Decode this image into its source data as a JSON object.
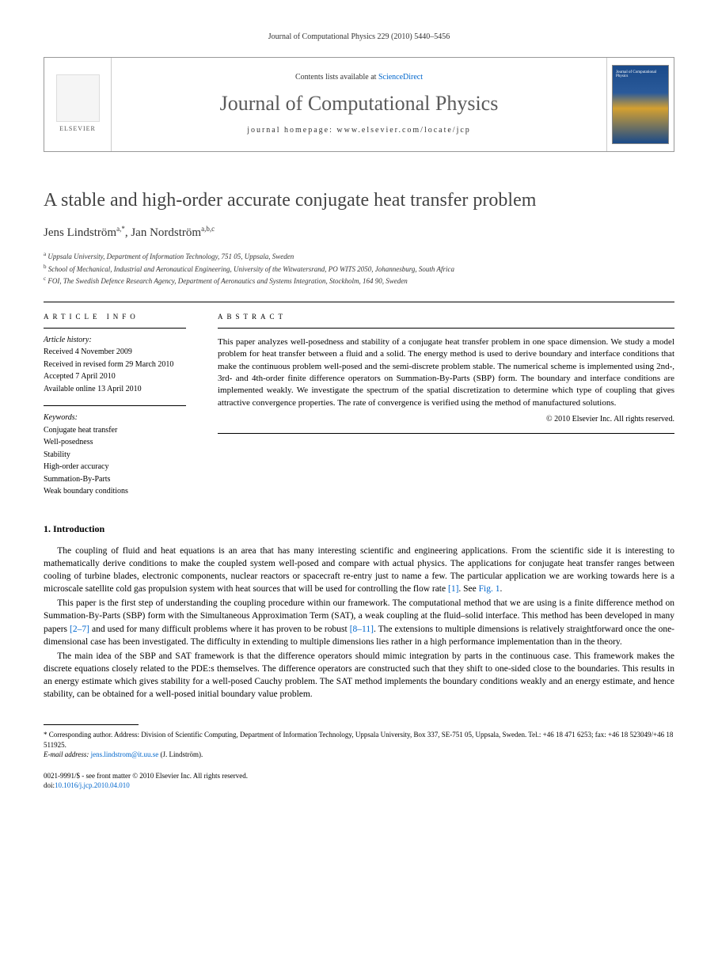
{
  "running_head": "Journal of Computational Physics 229 (2010) 5440–5456",
  "banner": {
    "elsevier_label": "ELSEVIER",
    "contents_prefix": "Contents lists available at ",
    "contents_link_text": "ScienceDirect",
    "journal_name": "Journal of Computational Physics",
    "homepage_label": "journal homepage: www.elsevier.com/locate/jcp",
    "cover_title": "Journal of\nComputational\nPhysics"
  },
  "article": {
    "title": "A stable and high-order accurate conjugate heat transfer problem",
    "authors_html_parts": [
      {
        "name": "Jens Lindström",
        "sup": "a,*"
      },
      {
        "name": "Jan Nordström",
        "sup": "a,b,c"
      }
    ],
    "affiliations": [
      {
        "marker": "a",
        "text": "Uppsala University, Department of Information Technology, 751 05, Uppsala, Sweden"
      },
      {
        "marker": "b",
        "text": "School of Mechanical, Industrial and Aeronautical Engineering, University of the Witwatersrand, PO WITS 2050, Johannesburg, South Africa"
      },
      {
        "marker": "c",
        "text": "FOI, The Swedish Defence Research Agency, Department of Aeronautics and Systems Integration, Stockholm, 164 90, Sweden"
      }
    ]
  },
  "info": {
    "heading": "ARTICLE INFO",
    "history_label": "Article history:",
    "history": [
      "Received 4 November 2009",
      "Received in revised form 29 March 2010",
      "Accepted 7 April 2010",
      "Available online 13 April 2010"
    ],
    "keywords_label": "Keywords:",
    "keywords": [
      "Conjugate heat transfer",
      "Well-posedness",
      "Stability",
      "High-order accuracy",
      "Summation-By-Parts",
      "Weak boundary conditions"
    ]
  },
  "abstract": {
    "heading": "ABSTRACT",
    "text": "This paper analyzes well-posedness and stability of a conjugate heat transfer problem in one space dimension. We study a model problem for heat transfer between a fluid and a solid. The energy method is used to derive boundary and interface conditions that make the continuous problem well-posed and the semi-discrete problem stable. The numerical scheme is implemented using 2nd-, 3rd- and 4th-order finite difference operators on Summation-By-Parts (SBP) form. The boundary and interface conditions are implemented weakly. We investigate the spectrum of the spatial discretization to determine which type of coupling that gives attractive convergence properties. The rate of convergence is verified using the method of manufactured solutions.",
    "copyright": "© 2010 Elsevier Inc. All rights reserved."
  },
  "section1": {
    "heading": "1. Introduction",
    "paragraphs": [
      "The coupling of fluid and heat equations is an area that has many interesting scientific and engineering applications. From the scientific side it is interesting to mathematically derive conditions to make the coupled system well-posed and compare with actual physics. The applications for conjugate heat transfer ranges between cooling of turbine blades, electronic components, nuclear reactors or spacecraft re-entry just to name a few. The particular application we are working towards here is a microscale satellite cold gas propulsion system with heat sources that will be used for controlling the flow rate [1]. See Fig. 1.",
      "This paper is the first step of understanding the coupling procedure within our framework. The computational method that we are using is a finite difference method on Summation-By-Parts (SBP) form with the Simultaneous Approximation Term (SAT), a weak coupling at the fluid–solid interface. This method has been developed in many papers [2–7] and used for many difficult problems where it has proven to be robust [8–11]. The extensions to multiple dimensions is relatively straightforward once the one-dimensional case has been investigated. The difficulty in extending to multiple dimensions lies rather in a high performance implementation than in the theory.",
      "The main idea of the SBP and SAT framework is that the difference operators should mimic integration by parts in the continuous case. This framework makes the discrete equations closely related to the PDE:s themselves. The difference operators are constructed such that they shift to one-sided close to the boundaries. This results in an energy estimate which gives stability for a well-posed Cauchy problem. The SAT method implements the boundary conditions weakly and an energy estimate, and hence stability, can be obtained for a well-posed initial boundary value problem."
    ],
    "refs": {
      "r1": "[1]",
      "fig1": "Fig. 1",
      "r27": "[2–7]",
      "r811": "[8–11]"
    }
  },
  "footnote": {
    "corr_label": "* Corresponding author.",
    "corr_text": " Address: Division of Scientific Computing, Department of Information Technology, Uppsala University, Box 337, SE-751 05, Uppsala, Sweden. Tel.: +46 18 471 6253; fax: +46 18 523049/+46 18 511925.",
    "email_label": "E-mail address: ",
    "email": "jens.lindstrom@it.uu.se",
    "email_suffix": " (J. Lindström)."
  },
  "bottom": {
    "issn_line": "0021-9991/$ - see front matter © 2010 Elsevier Inc. All rights reserved.",
    "doi_label": "doi:",
    "doi": "10.1016/j.jcp.2010.04.010"
  },
  "colors": {
    "link": "#0066cc",
    "title_gray": "#444444",
    "journal_gray": "#5a5a5a"
  }
}
